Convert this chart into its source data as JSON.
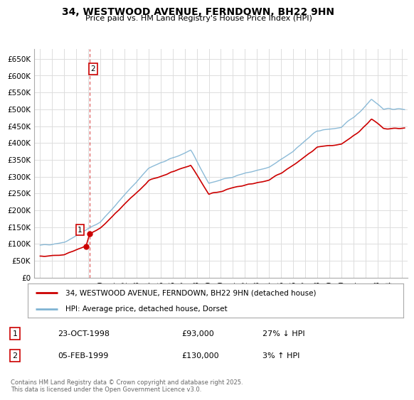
{
  "title": "34, WESTWOOD AVENUE, FERNDOWN, BH22 9HN",
  "subtitle": "Price paid vs. HM Land Registry's House Price Index (HPI)",
  "ylabel_ticks": [
    "£0",
    "£50K",
    "£100K",
    "£150K",
    "£200K",
    "£250K",
    "£300K",
    "£350K",
    "£400K",
    "£450K",
    "£500K",
    "£550K",
    "£600K",
    "£650K"
  ],
  "ytick_values": [
    0,
    50000,
    100000,
    150000,
    200000,
    250000,
    300000,
    350000,
    400000,
    450000,
    500000,
    550000,
    600000,
    650000
  ],
  "ylim": [
    0,
    680000
  ],
  "xlim_start": 1994.5,
  "xlim_end": 2025.5,
  "xtick_years": [
    1995,
    1996,
    1997,
    1998,
    1999,
    2000,
    2001,
    2002,
    2003,
    2004,
    2005,
    2006,
    2007,
    2008,
    2009,
    2010,
    2011,
    2012,
    2013,
    2014,
    2015,
    2016,
    2017,
    2018,
    2019,
    2020,
    2021,
    2022,
    2023,
    2024,
    2025
  ],
  "sale1_x": 1998.81,
  "sale1_y": 93000,
  "sale1_label": "1",
  "sale1_date": "23-OCT-1998",
  "sale1_price": "£93,000",
  "sale1_hpi": "27% ↓ HPI",
  "sale2_x": 1999.09,
  "sale2_y": 130000,
  "sale2_label": "2",
  "sale2_date": "05-FEB-1999",
  "sale2_price": "£130,000",
  "sale2_hpi": "3% ↑ HPI",
  "red_color": "#cc0000",
  "blue_color": "#7fb3d3",
  "dashed_vline_color": "#cc0000",
  "legend_label_red": "34, WESTWOOD AVENUE, FERNDOWN, BH22 9HN (detached house)",
  "legend_label_blue": "HPI: Average price, detached house, Dorset",
  "footer": "Contains HM Land Registry data © Crown copyright and database right 2025.\nThis data is licensed under the Open Government Licence v3.0.",
  "background_color": "#ffffff",
  "grid_color": "#dddddd"
}
